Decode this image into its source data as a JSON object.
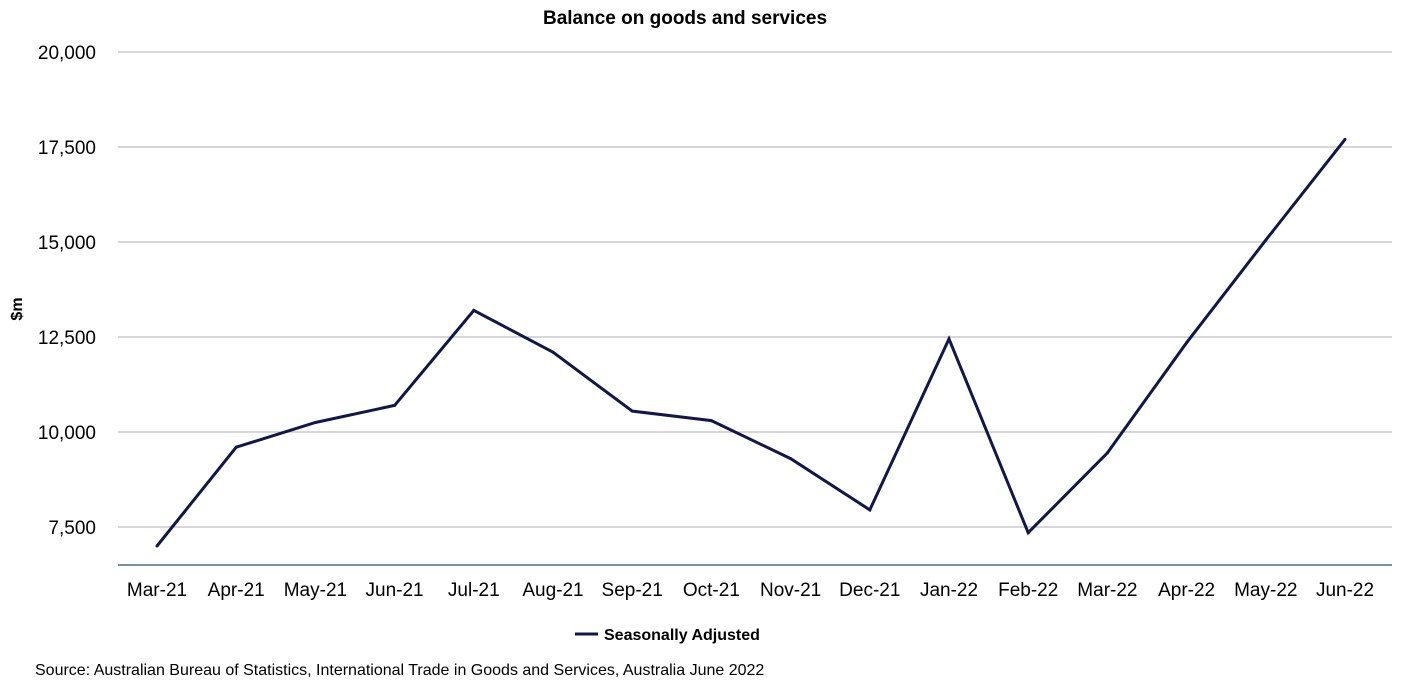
{
  "chart_data": {
    "type": "line",
    "title": "Balance on goods and services",
    "xlabel": "",
    "ylabel": "$m",
    "categories": [
      "Mar-21",
      "Apr-21",
      "May-21",
      "Jun-21",
      "Jul-21",
      "Aug-21",
      "Sep-21",
      "Oct-21",
      "Nov-21",
      "Dec-21",
      "Jan-22",
      "Feb-22",
      "Mar-22",
      "Apr-22",
      "May-22",
      "Jun-22"
    ],
    "series": [
      {
        "name": "Seasonally Adjusted",
        "color": "#12174a",
        "values": [
          7000,
          9600,
          10250,
          10700,
          13200,
          12100,
          10550,
          10300,
          9300,
          7950,
          12450,
          7350,
          9450,
          12350,
          15050,
          17700
        ]
      }
    ],
    "ylim": [
      6500,
      20000
    ],
    "yticks": [
      7500,
      10000,
      12500,
      15000,
      17500,
      20000
    ],
    "ytick_labels": [
      "7,500",
      "10,000",
      "12,500",
      "15,000",
      "17,500",
      "20,000"
    ],
    "grid": "horizontal",
    "legend_position": "bottom-center",
    "colors": {
      "grid": "#bfbfbf",
      "baseline": "#4a6f8a",
      "line": "#12174a"
    }
  },
  "source": "Source: Australian Bureau of Statistics, International Trade in Goods and Services, Australia June 2022"
}
